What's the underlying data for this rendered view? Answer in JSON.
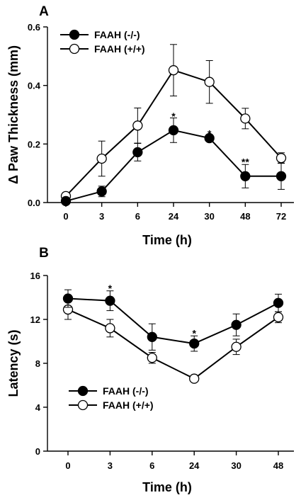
{
  "chart_data": [
    {
      "panel": "A",
      "type": "line",
      "categories": [
        "0",
        "3",
        "6",
        "24",
        "30",
        "48",
        "72"
      ],
      "ylabel": "Δ Paw Thickness (mm)",
      "xlabel": "Time (h)",
      "ylim": [
        0,
        0.6
      ],
      "yticks": [
        "0.0",
        "0.2",
        "0.4",
        "0.6"
      ],
      "legend_position": "top-left",
      "series": [
        {
          "name": "FAAH (-/-)",
          "marker": "filled",
          "values": [
            0.005,
            0.038,
            0.172,
            0.247,
            0.22,
            0.09,
            0.09
          ],
          "errors": [
            0.005,
            0.018,
            0.03,
            0.042,
            0.01,
            0.04,
            0.045
          ]
        },
        {
          "name": "FAAH (+/+)",
          "marker": "open",
          "values": [
            0.022,
            0.15,
            0.263,
            0.452,
            0.412,
            0.287,
            0.152
          ],
          "errors": [
            0.012,
            0.06,
            0.06,
            0.088,
            0.073,
            0.035,
            0.018
          ]
        }
      ],
      "annotations": [
        {
          "category": "24",
          "text": "*",
          "y": 0.298
        },
        {
          "category": "30",
          "text": "*",
          "y": 0.238
        },
        {
          "category": "48",
          "text": "**",
          "y": 0.142
        }
      ]
    },
    {
      "panel": "B",
      "type": "line",
      "categories": [
        "0",
        "3",
        "6",
        "24",
        "30",
        "48"
      ],
      "ylabel": "Latency (s)",
      "xlabel": "Time (h)",
      "ylim": [
        0,
        16
      ],
      "yticks": [
        "0",
        "4",
        "8",
        "12",
        "16"
      ],
      "legend_position": "bottom-left",
      "series": [
        {
          "name": "FAAH (-/-)",
          "marker": "filled",
          "values": [
            13.9,
            13.7,
            10.4,
            9.8,
            11.5,
            13.5
          ],
          "errors": [
            0.8,
            0.9,
            1.2,
            0.7,
            1.0,
            0.8
          ]
        },
        {
          "name": "FAAH (+/+)",
          "marker": "open",
          "values": [
            12.9,
            11.2,
            8.5,
            6.6,
            9.5,
            12.2
          ],
          "errors": [
            0.9,
            0.8,
            0.5,
            0.1,
            0.7,
            0.5
          ]
        }
      ],
      "annotations": [
        {
          "category": "3",
          "text": "*",
          "y": 14.9
        },
        {
          "category": "24",
          "text": "*",
          "y": 10.8
        }
      ]
    }
  ]
}
